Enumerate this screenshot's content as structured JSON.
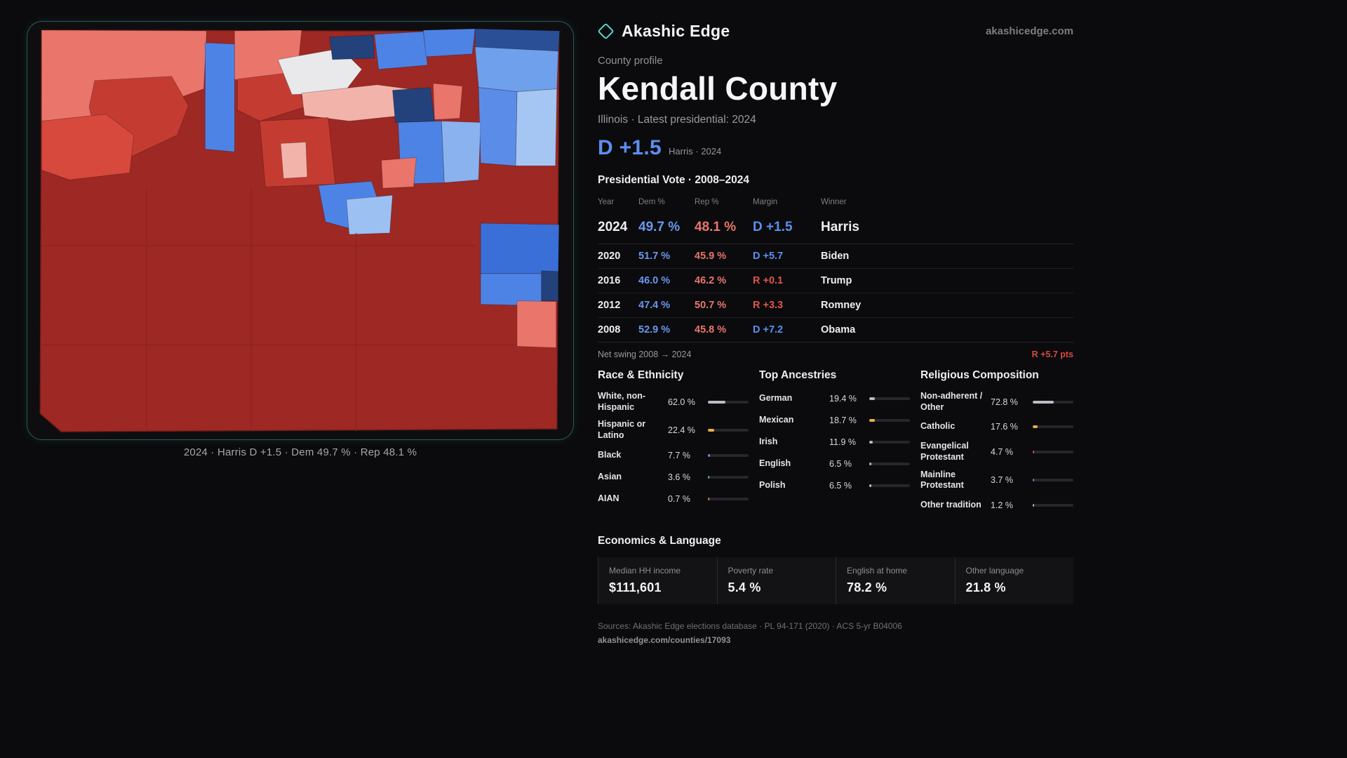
{
  "brand": {
    "name": "Akashic Edge",
    "domain": "akashicedge.com"
  },
  "colors": {
    "dem_blue": "#5b8ff2",
    "rep_red": "#e8766c",
    "swing_red": "#d8493c",
    "accent_teal": "#59d6cc"
  },
  "profile": {
    "kicker": "County profile",
    "title": "Kendall County",
    "subtitle": "Illinois · Latest presidential: 2024",
    "headline_margin": "D +1.5",
    "headline_note": "Harris · 2024"
  },
  "map": {
    "caption": "2024 · Harris D +1.5 · Dem 49.7 % · Rep 48.1 %"
  },
  "vote_table": {
    "title": "Presidential Vote · 2008–2024",
    "headers": [
      "Year",
      "Dem %",
      "Rep %",
      "Margin",
      "Winner"
    ],
    "rows": [
      {
        "year": "2024",
        "dem": "49.7 %",
        "rep": "48.1 %",
        "margin": "D +1.5",
        "margin_color": "#5b8ff2",
        "winner": "Harris"
      },
      {
        "year": "2020",
        "dem": "51.7 %",
        "rep": "45.9 %",
        "margin": "D +5.7",
        "margin_color": "#5b8ff2",
        "winner": "Biden"
      },
      {
        "year": "2016",
        "dem": "46.0 %",
        "rep": "46.2 %",
        "margin": "R +0.1",
        "margin_color": "#e0564a",
        "winner": "Trump"
      },
      {
        "year": "2012",
        "dem": "47.4 %",
        "rep": "50.7 %",
        "margin": "R +3.3",
        "margin_color": "#e0564a",
        "winner": "Romney"
      },
      {
        "year": "2008",
        "dem": "52.9 %",
        "rep": "45.8 %",
        "margin": "D +7.2",
        "margin_color": "#5b8ff2",
        "winner": "Obama"
      }
    ],
    "net_swing_label": "Net swing 2008 → 2024",
    "net_swing_value": "R +5.7 pts"
  },
  "demographics": {
    "race": {
      "title": "Race & Ethnicity",
      "rows": [
        {
          "label": "White, non-Hispanic",
          "value": "62.0 %",
          "pct": 62.0,
          "color": "#b9bcc3"
        },
        {
          "label": "Hispanic or Latino",
          "value": "22.4 %",
          "pct": 22.4,
          "color": "#e3b341"
        },
        {
          "label": "Black",
          "value": "7.7 %",
          "pct": 7.7,
          "color": "#8f7ce8"
        },
        {
          "label": "Asian",
          "value": "3.6 %",
          "pct": 3.6,
          "color": "#56c2b8"
        },
        {
          "label": "AIAN",
          "value": "0.7 %",
          "pct": 0.7,
          "color": "#e0823c"
        }
      ]
    },
    "ancestries": {
      "title": "Top Ancestries",
      "rows": [
        {
          "label": "German",
          "value": "19.4 %",
          "pct": 19.4,
          "color": "#b9bcc3"
        },
        {
          "label": "Mexican",
          "value": "18.7 %",
          "pct": 18.7,
          "color": "#e3b341"
        },
        {
          "label": "Irish",
          "value": "11.9 %",
          "pct": 11.9,
          "color": "#b9bcc3"
        },
        {
          "label": "English",
          "value": "6.5 %",
          "pct": 6.5,
          "color": "#b9bcc3"
        },
        {
          "label": "Polish",
          "value": "6.5 %",
          "pct": 6.5,
          "color": "#b9bcc3"
        }
      ]
    },
    "religion": {
      "title": "Religious Composition",
      "rows": [
        {
          "label": "Non-adherent / Other",
          "value": "72.8 %",
          "pct": 72.8,
          "color": "#b9bcc3"
        },
        {
          "label": "Catholic",
          "value": "17.6 %",
          "pct": 17.6,
          "color": "#e3b341"
        },
        {
          "label": "Evangelical Protestant",
          "value": "4.7 %",
          "pct": 4.7,
          "color": "#dd5148"
        },
        {
          "label": "Mainline Protestant",
          "value": "3.7 %",
          "pct": 3.7,
          "color": "#5b8ff2"
        },
        {
          "label": "Other tradition",
          "value": "1.2 %",
          "pct": 1.2,
          "color": "#b9bcc3"
        }
      ]
    }
  },
  "economics": {
    "title": "Economics & Language",
    "stats": [
      {
        "label": "Median HH income",
        "value": "$111,601"
      },
      {
        "label": "Poverty rate",
        "value": "5.4 %"
      },
      {
        "label": "English at home",
        "value": "78.2 %"
      },
      {
        "label": "Other language",
        "value": "21.8 %"
      }
    ]
  },
  "footer": {
    "sources": "Sources: Akashic Edge elections database · PL 94-171 (2020) · ACS 5-yr B04006",
    "permalink": "akashicedge.com/counties/17093"
  }
}
